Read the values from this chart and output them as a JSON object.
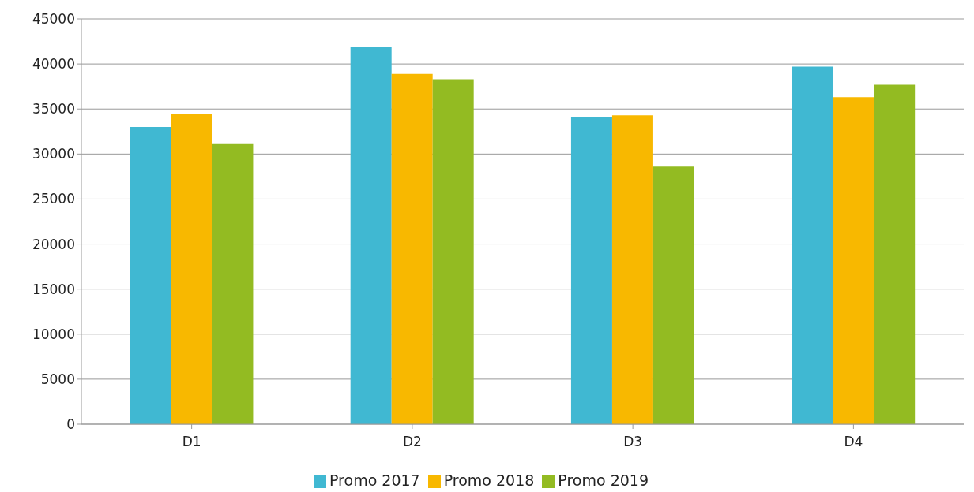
{
  "chart_data": {
    "type": "bar",
    "categories": [
      "D1",
      "D2",
      "D3",
      "D4"
    ],
    "series": [
      {
        "name": "Promo 2017",
        "color": "#40b8d2",
        "values": [
          33000,
          41900,
          34100,
          39700
        ]
      },
      {
        "name": "Promo 2018",
        "color": "#f8b800",
        "values": [
          34500,
          38900,
          34300,
          36300
        ]
      },
      {
        "name": "Promo 2019",
        "color": "#93bb22",
        "values": [
          31100,
          38300,
          28600,
          37700
        ]
      }
    ],
    "ylim": [
      0,
      45000
    ],
    "yticks": [
      0,
      5000,
      10000,
      15000,
      20000,
      25000,
      30000,
      35000,
      40000,
      45000
    ],
    "grid": "y",
    "legend": "bottom"
  }
}
